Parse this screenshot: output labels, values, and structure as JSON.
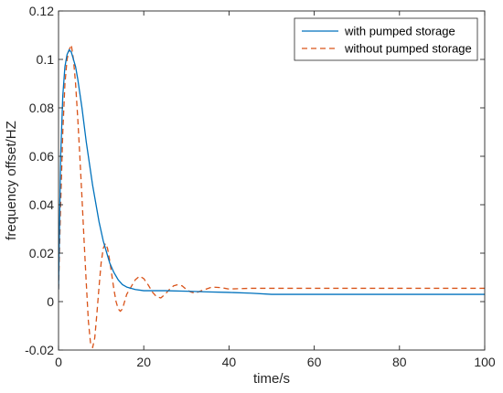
{
  "chart_data": {
    "type": "line",
    "xlabel": "time/s",
    "ylabel": "frequency offset/HZ",
    "xlim": [
      0,
      100
    ],
    "ylim": [
      -0.02,
      0.12
    ],
    "x_ticks": [
      0,
      20,
      40,
      60,
      80,
      100
    ],
    "y_ticks": [
      -0.02,
      0,
      0.02,
      0.04,
      0.06,
      0.08,
      0.1,
      0.12
    ],
    "x_tick_labels": [
      "0",
      "20",
      "40",
      "60",
      "80",
      "100"
    ],
    "y_tick_labels": [
      "-0.02",
      "0",
      "0.02",
      "0.04",
      "0.06",
      "0.08",
      "0.1",
      "0.12"
    ],
    "grid": false,
    "legend_position": "top-right",
    "series": [
      {
        "name": "with pumped storage",
        "color": "#0072BD",
        "style": "solid",
        "points": [
          [
            0,
            0.005
          ],
          [
            0.5,
            0.06
          ],
          [
            1.0,
            0.085
          ],
          [
            1.5,
            0.097
          ],
          [
            2.0,
            0.102
          ],
          [
            2.5,
            0.104
          ],
          [
            3.0,
            0.103
          ],
          [
            3.5,
            0.1
          ],
          [
            4.0,
            0.097
          ],
          [
            4.5,
            0.092
          ],
          [
            5.0,
            0.086
          ],
          [
            5.5,
            0.08
          ],
          [
            6.0,
            0.073
          ],
          [
            6.5,
            0.066
          ],
          [
            7.0,
            0.06
          ],
          [
            7.5,
            0.054
          ],
          [
            8.0,
            0.048
          ],
          [
            8.5,
            0.043
          ],
          [
            9.0,
            0.038
          ],
          [
            9.5,
            0.033
          ],
          [
            10.0,
            0.029
          ],
          [
            10.5,
            0.025
          ],
          [
            11.0,
            0.022
          ],
          [
            11.5,
            0.019
          ],
          [
            12.0,
            0.016
          ],
          [
            13.0,
            0.012
          ],
          [
            14.0,
            0.009
          ],
          [
            15.0,
            0.007
          ],
          [
            16.0,
            0.006
          ],
          [
            18.0,
            0.005
          ],
          [
            20.0,
            0.0045
          ],
          [
            25.0,
            0.0045
          ],
          [
            30.0,
            0.0043
          ],
          [
            35.0,
            0.004
          ],
          [
            40.0,
            0.0038
          ],
          [
            45.0,
            0.0035
          ],
          [
            50.0,
            0.003
          ],
          [
            60.0,
            0.003
          ],
          [
            80.0,
            0.003
          ],
          [
            100.0,
            0.003
          ]
        ]
      },
      {
        "name": "without pumped storage",
        "color": "#D95319",
        "style": "dashed",
        "points": [
          [
            0,
            0.005
          ],
          [
            0.5,
            0.04
          ],
          [
            1.0,
            0.07
          ],
          [
            1.5,
            0.09
          ],
          [
            2.0,
            0.1
          ],
          [
            2.5,
            0.104
          ],
          [
            3.0,
            0.106
          ],
          [
            3.5,
            0.1
          ],
          [
            4.0,
            0.09
          ],
          [
            4.5,
            0.076
          ],
          [
            5.0,
            0.06
          ],
          [
            5.5,
            0.043
          ],
          [
            6.0,
            0.025
          ],
          [
            6.5,
            0.008
          ],
          [
            7.0,
            -0.008
          ],
          [
            7.5,
            -0.017
          ],
          [
            8.0,
            -0.019
          ],
          [
            8.5,
            -0.015
          ],
          [
            9.0,
            -0.005
          ],
          [
            9.5,
            0.006
          ],
          [
            10.0,
            0.016
          ],
          [
            10.5,
            0.022
          ],
          [
            11.0,
            0.024
          ],
          [
            11.5,
            0.022
          ],
          [
            12.0,
            0.017
          ],
          [
            12.5,
            0.011
          ],
          [
            13.0,
            0.005
          ],
          [
            13.5,
            0.0
          ],
          [
            14.0,
            -0.003
          ],
          [
            14.5,
            -0.004
          ],
          [
            15.0,
            -0.003
          ],
          [
            15.5,
            0.0
          ],
          [
            16.0,
            0.003
          ],
          [
            17.0,
            0.006
          ],
          [
            18.0,
            0.009
          ],
          [
            19.0,
            0.0105
          ],
          [
            20.0,
            0.0095
          ],
          [
            21.0,
            0.007
          ],
          [
            22.0,
            0.004
          ],
          [
            23.0,
            0.002
          ],
          [
            24.0,
            0.0015
          ],
          [
            25.0,
            0.003
          ],
          [
            26.0,
            0.005
          ],
          [
            27.0,
            0.0065
          ],
          [
            28.0,
            0.007
          ],
          [
            29.0,
            0.0065
          ],
          [
            30.0,
            0.005
          ],
          [
            31.0,
            0.004
          ],
          [
            32.0,
            0.0035
          ],
          [
            34.0,
            0.0048
          ],
          [
            36.0,
            0.006
          ],
          [
            38.0,
            0.0058
          ],
          [
            40.0,
            0.0052
          ],
          [
            45.0,
            0.0055
          ],
          [
            50.0,
            0.0055
          ],
          [
            60.0,
            0.0055
          ],
          [
            80.0,
            0.0055
          ],
          [
            100.0,
            0.0055
          ]
        ]
      }
    ]
  }
}
